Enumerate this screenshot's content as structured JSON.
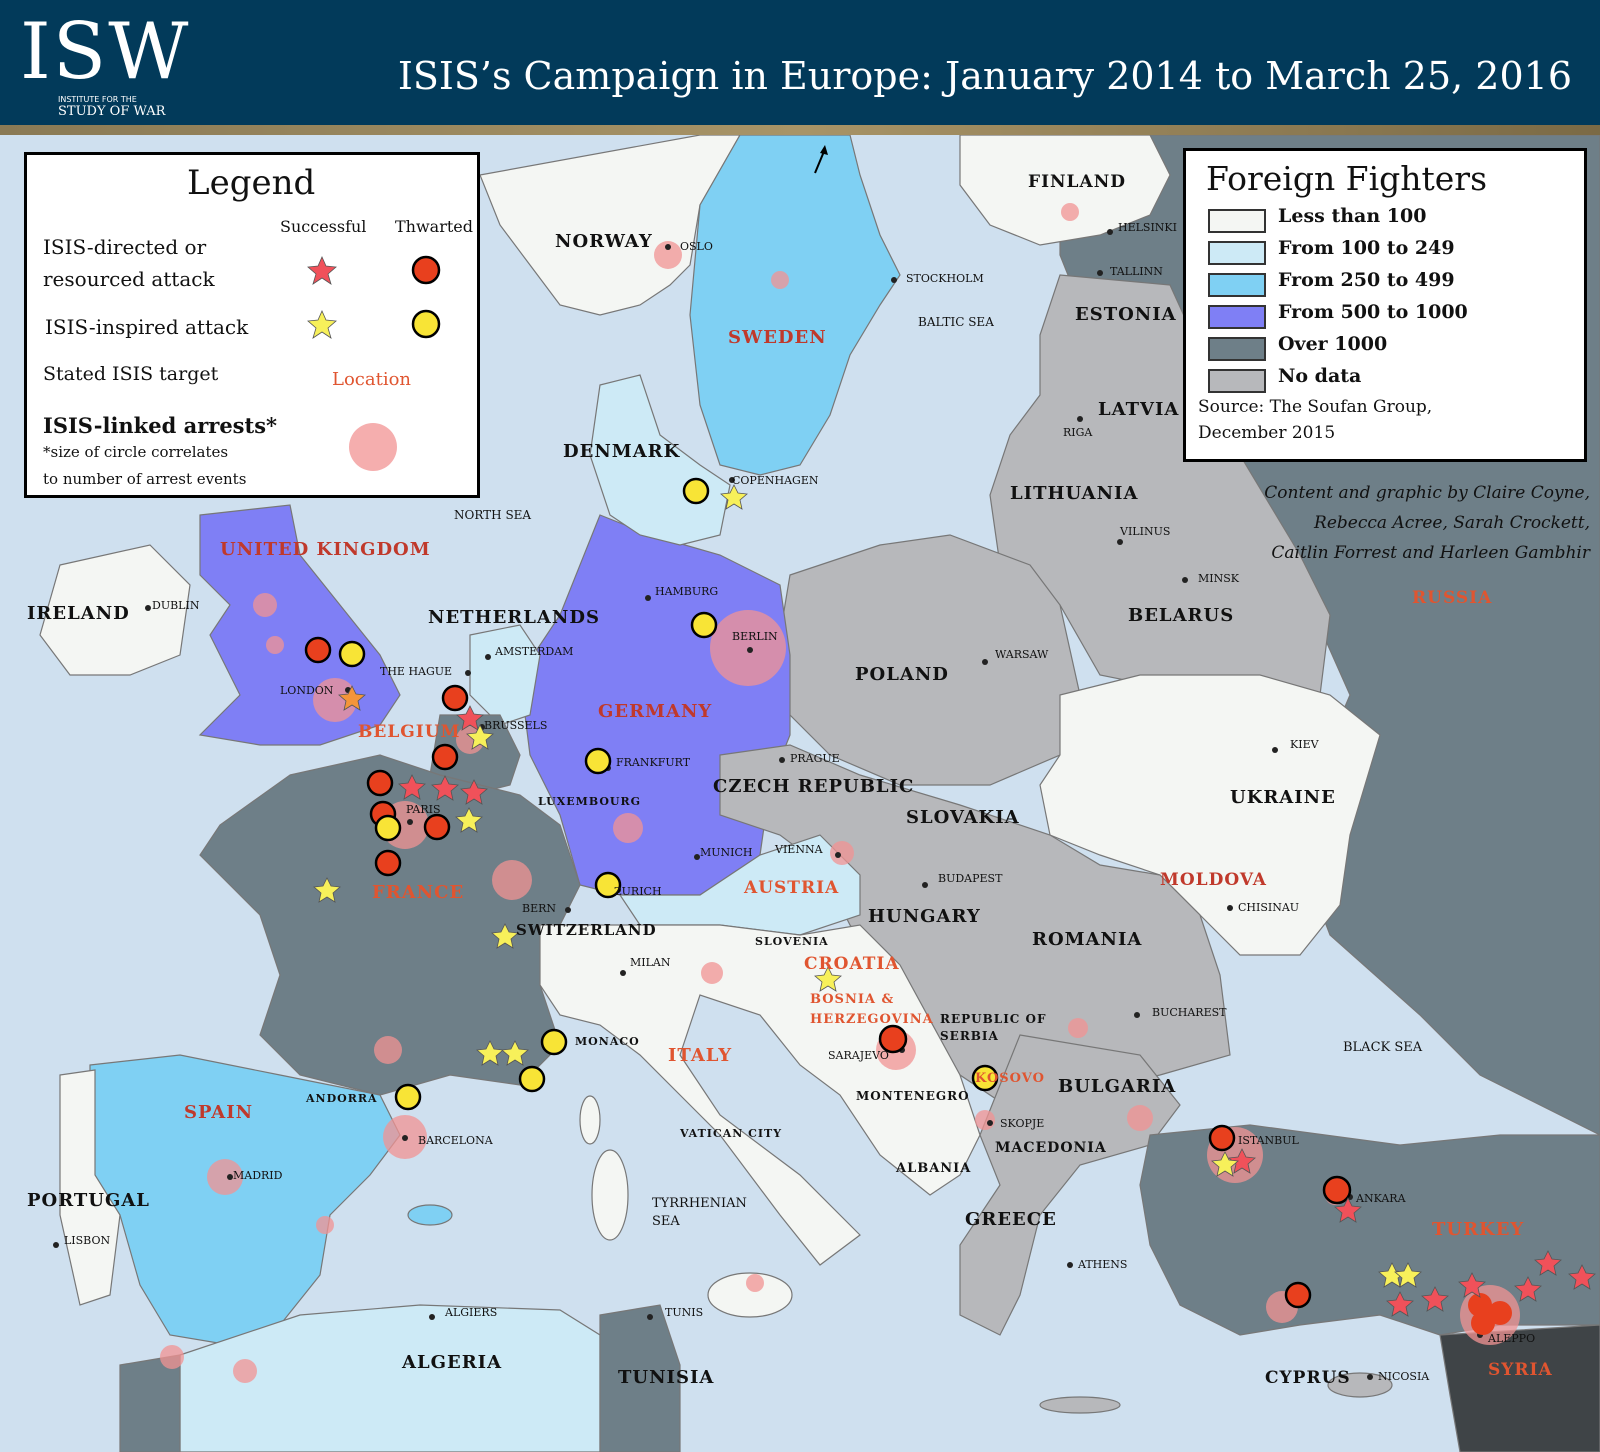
{
  "header": {
    "logo": "ISW",
    "logo_sub_1": "INSTITUTE FOR THE",
    "logo_sub_2": "STUDY OF WAR",
    "title": "ISIS’s Campaign in Europe: January 2014 to March 25, 2016"
  },
  "legend": {
    "title": "Legend",
    "col_successful": "Successful",
    "col_thwarted": "Thwarted",
    "row_directed": "ISIS-directed or",
    "row_directed_2": "resourced attack",
    "row_inspired": "ISIS-inspired attack",
    "row_target": "Stated ISIS target",
    "target_sample": "Location",
    "row_arrests": "ISIS-linked arrests*",
    "arrests_note_1": "*size of circle correlates",
    "arrests_note_2": "to number of arrest events"
  },
  "foreign_fighters": {
    "title": "Foreign Fighters",
    "items": [
      {
        "label": "Less than 100",
        "color": "#f4f6f3"
      },
      {
        "label": "From 100 to 249",
        "color": "#cdeaf6"
      },
      {
        "label": "From 250 to 499",
        "color": "#7fd0f3"
      },
      {
        "label": "From 500 to 1000",
        "color": "#7f7ff5"
      },
      {
        "label": "Over 1000",
        "color": "#6e7f88"
      },
      {
        "label": "No data",
        "color": "#b7b8bb"
      }
    ],
    "source_1": "Source: The Soufan Group,",
    "source_2": "December 2015"
  },
  "credit": {
    "line1": "Content and graphic by Claire Coyne,",
    "line2": "Rebecca Acree, Sarah Crockett,",
    "line3": "Caitlin Forrest and Harleen Gambhir"
  },
  "colors": {
    "sea": "#cfe0ef",
    "star_red": "#f0515a",
    "star_yellow": "#f7f05a",
    "thwarted_red": "#e8401e",
    "thwarted_yellow": "#f8e436",
    "arrest": "#f29393",
    "target_text": "#e05530"
  },
  "countries": {
    "norway": "NORWAY",
    "sweden": "SWEDEN",
    "finland": "FINLAND",
    "estonia": "ESTONIA",
    "latvia": "LATVIA",
    "lithuania": "LITHUANIA",
    "belarus": "BELARUS",
    "russia": "RUSSIA",
    "denmark": "DENMARK",
    "uk": "UNITED KINGDOM",
    "ireland": "IRELAND",
    "netherlands": "NETHERLANDS",
    "belgium": "BELGIUM",
    "germany": "GERMANY",
    "poland": "POLAND",
    "czech": "CZECH REPUBLIC",
    "slovakia": "SLOVAKIA",
    "ukraine": "UKRAINE",
    "france": "FRANCE",
    "austria": "AUSTRIA",
    "hungary": "HUNGARY",
    "moldova": "MOLDOVA",
    "romania": "ROMANIA",
    "switzerland": "SWITZERLAND",
    "croatia": "CROATIA",
    "bosnia_1": "BOSNIA &",
    "bosnia_2": "HERZEGOVINA",
    "serbia_1": "REPUBLIC OF",
    "serbia_2": "SERBIA",
    "kosovo": "KOSOVO",
    "bulgaria": "BULGARIA",
    "macedonia": "MACEDONIA",
    "albania": "ALBANIA",
    "montenegro": "MONTENEGRO",
    "italy": "ITALY",
    "spain": "SPAIN",
    "portugal": "PORTUGAL",
    "greece": "GREECE",
    "turkey": "TURKEY",
    "syria": "SYRIA",
    "cyprus": "CYPRUS",
    "algeria": "ALGERIA",
    "tunisia": "TUNISIA",
    "slovenia": "SLOVENIA",
    "luxembourg": "LUXEMBOURG",
    "andorra": "ANDORRA",
    "monaco": "MONACO",
    "vatican": "VATICAN CITY"
  },
  "seas": {
    "north_sea": "NORTH SEA",
    "baltic": "BALTIC SEA",
    "black_sea": "BLACK SEA",
    "tyrrhenian_1": "TYRRHENIAN",
    "tyrrhenian_2": "SEA"
  },
  "cities": {
    "oslo": "OSLO",
    "stockholm": "STOCKHOLM",
    "helsinki": "HELSINKI",
    "tallinn": "TALLINN",
    "riga": "RIGA",
    "vilnius": "VILINUS",
    "minsk": "MINSK",
    "copenhagen": "COPENHAGEN",
    "dublin": "DUBLIN",
    "london": "LONDON",
    "the_hague": "THE HAGUE",
    "amsterdam": "AMSTERDAM",
    "brussels": "BRUSSELS",
    "hamburg": "HAMBURG",
    "berlin": "BERLIN",
    "warsaw": "WARSAW",
    "prague": "PRAGUE",
    "frankfurt": "FRANKFURT",
    "paris": "PARIS",
    "munich": "MUNICH",
    "vienna": "VIENNA",
    "kiev": "KIEV",
    "zurich": "ZURICH",
    "bern": "BERN",
    "budapest": "BUDAPEST",
    "chisinau": "CHISINAU",
    "milan": "MILAN",
    "bucharest": "BUCHAREST",
    "sarajevo": "SARAJEVO",
    "skopje": "SKOPJE",
    "istanbul": "ISTANBUL",
    "ankara": "ANKARA",
    "madrid": "MADRID",
    "barcelona": "BARCELONA",
    "lisbon": "LISBON",
    "athens": "ATHENS",
    "aleppo": "ALEPPO",
    "nicosia": "NICOSIA",
    "algiers": "ALGIERS",
    "tunis": "TUNIS"
  }
}
